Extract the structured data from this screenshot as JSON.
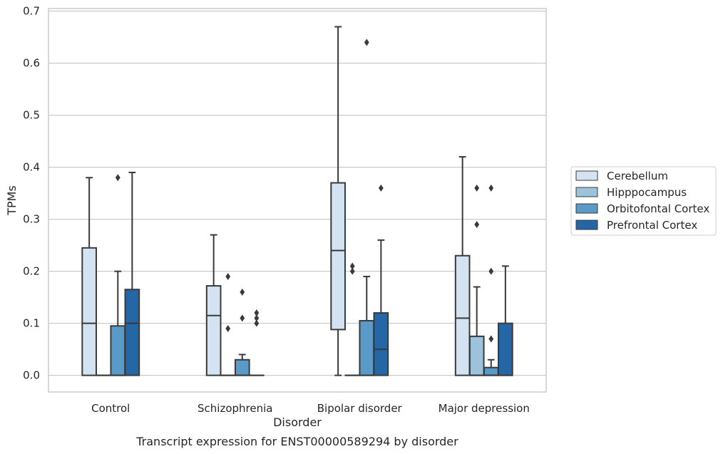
{
  "chart_data": {
    "type": "box",
    "xlabel": "Disorder",
    "ylabel": "TPMs",
    "caption": "Transcript expression for ENST00000589294 by disorder",
    "ylim": [
      -0.032,
      0.705
    ],
    "yticks": [
      0.0,
      0.1,
      0.2,
      0.3,
      0.4,
      0.5,
      0.6,
      0.7
    ],
    "ytick_labels": [
      "0.0",
      "0.1",
      "0.2",
      "0.3",
      "0.4",
      "0.5",
      "0.6",
      "0.7"
    ],
    "grid": "horizontal",
    "legend_position": "right",
    "categories": [
      "Control",
      "Schizophrenia",
      "Bipolar disorder",
      "Major depression"
    ],
    "series": [
      {
        "name": "Cerebellum",
        "color": "#d4e3f2",
        "boxes": [
          {
            "category": "Control",
            "whisker_low": 0.0,
            "q1": 0.0,
            "median": 0.1,
            "q3": 0.245,
            "whisker_high": 0.38,
            "outliers": []
          },
          {
            "category": "Schizophrenia",
            "whisker_low": 0.0,
            "q1": 0.0,
            "median": 0.115,
            "q3": 0.172,
            "whisker_high": 0.27,
            "outliers": []
          },
          {
            "category": "Bipolar disorder",
            "whisker_low": 0.0,
            "q1": 0.088,
            "median": 0.24,
            "q3": 0.37,
            "whisker_high": 0.67,
            "outliers": []
          },
          {
            "category": "Major depression",
            "whisker_low": 0.0,
            "q1": 0.0,
            "median": 0.11,
            "q3": 0.23,
            "whisker_high": 0.42,
            "outliers": []
          }
        ]
      },
      {
        "name": "Hipppocampus",
        "color": "#9cc2dc",
        "boxes": [
          {
            "category": "Control",
            "whisker_low": 0.0,
            "q1": 0.0,
            "median": 0.0,
            "q3": 0.0,
            "whisker_high": 0.0,
            "outliers": []
          },
          {
            "category": "Schizophrenia",
            "whisker_low": 0.0,
            "q1": 0.0,
            "median": 0.0,
            "q3": 0.0,
            "whisker_high": 0.0,
            "outliers": [
              0.09,
              0.19
            ]
          },
          {
            "category": "Bipolar disorder",
            "whisker_low": 0.0,
            "q1": 0.0,
            "median": 0.0,
            "q3": 0.0,
            "whisker_high": 0.0,
            "outliers": [
              0.2,
              0.21
            ]
          },
          {
            "category": "Major depression",
            "whisker_low": 0.0,
            "q1": 0.0,
            "median": 0.0,
            "q3": 0.075,
            "whisker_high": 0.17,
            "outliers": [
              0.29,
              0.36
            ]
          }
        ]
      },
      {
        "name": "Orbitofontal Cortex",
        "color": "#5a9ac8",
        "boxes": [
          {
            "category": "Control",
            "whisker_low": 0.0,
            "q1": 0.0,
            "median": 0.0,
            "q3": 0.095,
            "whisker_high": 0.2,
            "outliers": [
              0.38
            ]
          },
          {
            "category": "Schizophrenia",
            "whisker_low": 0.0,
            "q1": 0.0,
            "median": 0.0,
            "q3": 0.03,
            "whisker_high": 0.04,
            "outliers": [
              0.11,
              0.16
            ]
          },
          {
            "category": "Bipolar disorder",
            "whisker_low": 0.0,
            "q1": 0.0,
            "median": 0.0,
            "q3": 0.105,
            "whisker_high": 0.19,
            "outliers": [
              0.64
            ]
          },
          {
            "category": "Major depression",
            "whisker_low": 0.0,
            "q1": 0.0,
            "median": 0.0,
            "q3": 0.015,
            "whisker_high": 0.03,
            "outliers": [
              0.07,
              0.2,
              0.36
            ]
          }
        ]
      },
      {
        "name": "Prefrontal Cortex",
        "color": "#2567a6",
        "boxes": [
          {
            "category": "Control",
            "whisker_low": 0.0,
            "q1": 0.0,
            "median": 0.1,
            "q3": 0.165,
            "whisker_high": 0.39,
            "outliers": []
          },
          {
            "category": "Schizophrenia",
            "whisker_low": 0.0,
            "q1": 0.0,
            "median": 0.0,
            "q3": 0.0,
            "whisker_high": 0.0,
            "outliers": [
              0.1,
              0.11,
              0.12
            ]
          },
          {
            "category": "Bipolar disorder",
            "whisker_low": 0.0,
            "q1": 0.0,
            "median": 0.05,
            "q3": 0.12,
            "whisker_high": 0.26,
            "outliers": [
              0.36
            ]
          },
          {
            "category": "Major depression",
            "whisker_low": 0.0,
            "q1": 0.0,
            "median": 0.0,
            "q3": 0.1,
            "whisker_high": 0.21,
            "outliers": []
          }
        ]
      }
    ]
  }
}
